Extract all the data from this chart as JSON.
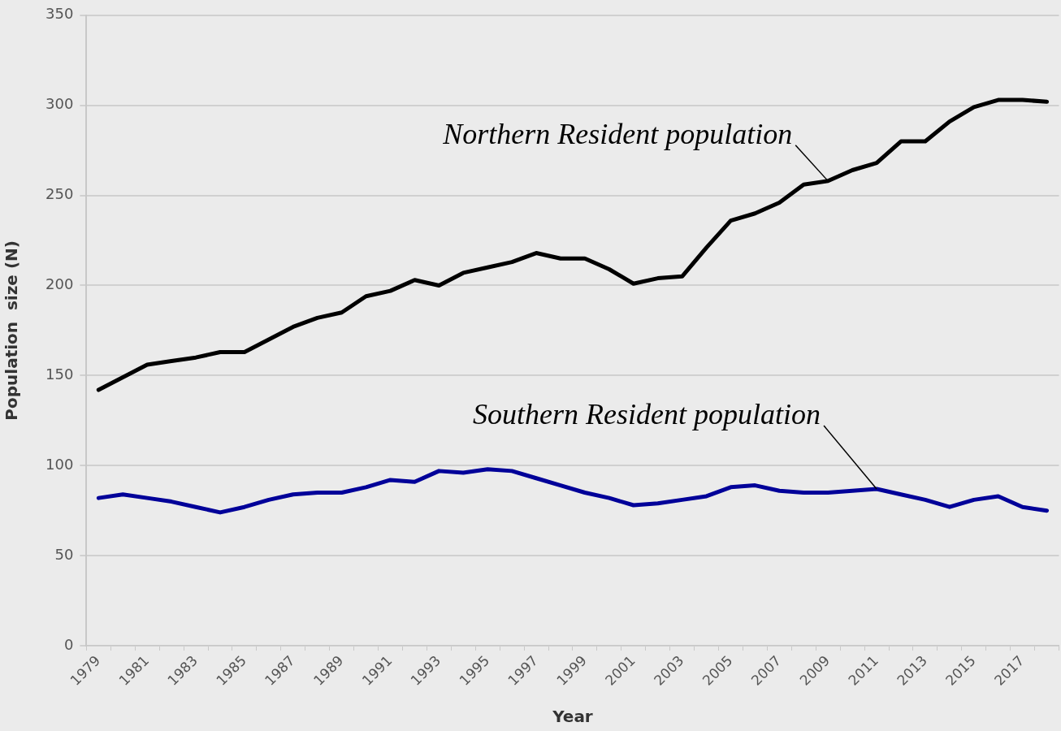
{
  "chart_data": {
    "type": "line",
    "xlabel": "Year",
    "ylabel": "Population  size (N)",
    "categories": [
      "1979",
      null,
      "1981",
      null,
      "1983",
      null,
      "1985",
      null,
      "1987",
      null,
      "1989",
      null,
      "1991",
      null,
      "1993",
      null,
      "1995",
      null,
      "1997",
      null,
      "1999",
      null,
      "2001",
      null,
      "2003",
      null,
      "2005",
      null,
      "2007",
      null,
      "2009",
      null,
      "2011",
      null,
      "2013",
      null,
      "2015",
      null,
      "2017",
      null
    ],
    "series": [
      {
        "color": "#000000",
        "values": [
          142,
          149,
          156,
          158,
          160,
          163,
          163,
          170,
          177,
          182,
          185,
          194,
          197,
          203,
          200,
          207,
          210,
          213,
          218,
          215,
          215,
          209,
          201,
          204,
          205,
          221,
          236,
          240,
          246,
          256,
          258,
          264,
          268,
          280,
          280,
          291,
          299,
          303,
          303,
          302
        ]
      },
      {
        "color": "#000099",
        "values": [
          82,
          84,
          82,
          80,
          77,
          74,
          77,
          81,
          84,
          85,
          85,
          88,
          92,
          91,
          97,
          96,
          98,
          97,
          93,
          89,
          85,
          82,
          78,
          79,
          81,
          83,
          88,
          89,
          86,
          85,
          85,
          86,
          87,
          84,
          81,
          77,
          81,
          83,
          77,
          75
        ]
      }
    ],
    "ylim": [
      0,
      350
    ],
    "yticks": [
      0,
      50,
      100,
      150,
      200,
      250,
      300,
      350
    ],
    "grid": "y",
    "marker": "none",
    "line_style": "solid",
    "annotations": [
      {
        "text": "Northern Resident population",
        "x": "2009",
        "y": 258
      },
      {
        "text": "Southern Resident population",
        "x": "2011",
        "y": 87
      }
    ]
  }
}
